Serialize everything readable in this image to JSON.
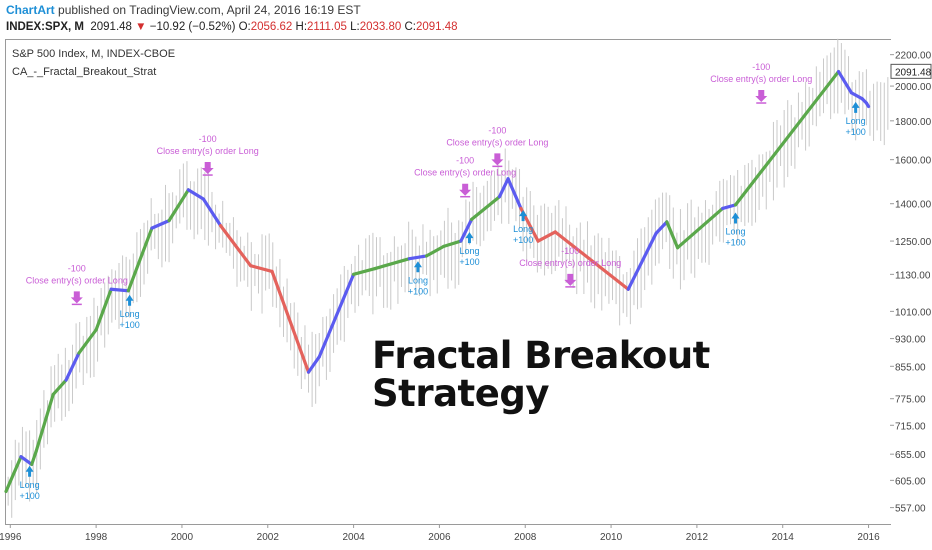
{
  "header": {
    "brand": "ChartArt",
    "published": "published on TradingView.com, April 24, 2016 16:19 EST",
    "symbol": "INDEX:SPX, M",
    "last": "2091.48",
    "change": "−10.92 (−0.52%)",
    "o_label": "O:",
    "o_value": "2056.62",
    "h_label": "H:",
    "h_value": "2111.05",
    "l_label": "L:",
    "l_value": "2033.80",
    "c_label": "C:",
    "c_value": "2091.48"
  },
  "legend": {
    "instrument": "S&P 500 Index, M, INDEX-CBOE",
    "strategy": "CA_-_Fractal_Breakout_Strat"
  },
  "overlay_text": {
    "line1": "Fractal Breakout",
    "line2": "Strategy"
  },
  "colors": {
    "up": "#5aa84b",
    "down": "#e4625c",
    "fractal": "#5b5bf0",
    "long_signal": "#1e8fd6",
    "close_signal": "#c95ed6",
    "price_bars": "#c9c9c9",
    "axis_text": "#444444",
    "price_tag": "#ffffff"
  },
  "chart_data": {
    "type": "line",
    "scale": "log",
    "ylim": [
      530,
      2300
    ],
    "y_ticks": [
      "557.00",
      "605.00",
      "655.00",
      "715.00",
      "775.00",
      "855.00",
      "930.00",
      "1010.00",
      "1130.00",
      "1250.00",
      "1400.00",
      "1600.00",
      "1800.00",
      "2000.00",
      "2200.00"
    ],
    "last_price_label": "2091.48",
    "x_ticks": [
      "1996",
      "1998",
      "2000",
      "2002",
      "2004",
      "2006",
      "2008",
      "2010",
      "2012",
      "2014",
      "2016"
    ],
    "xlim": [
      1995.9,
      2016.5
    ],
    "series": [
      {
        "points": [
          [
            1995.9,
            585,
            "up"
          ],
          [
            1996.25,
            650,
            "up"
          ],
          [
            1996.5,
            635,
            "fractal"
          ],
          [
            1996.6,
            660,
            "up"
          ],
          [
            1997.0,
            785,
            "up"
          ],
          [
            1997.3,
            820,
            "up"
          ],
          [
            1997.6,
            890,
            "fractal"
          ],
          [
            1998.0,
            955,
            "up"
          ],
          [
            1998.35,
            1080,
            "up"
          ],
          [
            1998.75,
            1075,
            "fractal"
          ],
          [
            1999.3,
            1300,
            "up"
          ],
          [
            1999.7,
            1330,
            "fractal"
          ],
          [
            2000.15,
            1460,
            "up"
          ],
          [
            2000.5,
            1420,
            "fractal"
          ],
          [
            2000.9,
            1310,
            "fractal"
          ],
          [
            2001.6,
            1160,
            "down"
          ],
          [
            2002.1,
            1140,
            "down"
          ],
          [
            2002.95,
            840,
            "down"
          ],
          [
            2003.2,
            880,
            "fractal"
          ],
          [
            2004.0,
            1130,
            "fractal"
          ],
          [
            2004.5,
            1150,
            "up"
          ],
          [
            2005.3,
            1185,
            "up"
          ],
          [
            2005.7,
            1195,
            "fractal"
          ],
          [
            2006.1,
            1230,
            "up"
          ],
          [
            2006.5,
            1250,
            "up"
          ],
          [
            2006.75,
            1335,
            "fractal"
          ],
          [
            2007.4,
            1430,
            "up"
          ],
          [
            2007.6,
            1510,
            "fractal"
          ],
          [
            2007.9,
            1380,
            "fractal"
          ],
          [
            2008.3,
            1250,
            "down"
          ],
          [
            2008.7,
            1285,
            "down"
          ],
          [
            2010.4,
            1080,
            "down"
          ],
          [
            2011.05,
            1280,
            "fractal"
          ],
          [
            2011.3,
            1325,
            "fractal"
          ],
          [
            2011.55,
            1225,
            "up"
          ],
          [
            2012.6,
            1380,
            "up"
          ],
          [
            2012.9,
            1395,
            "fractal"
          ],
          [
            2015.3,
            2090,
            "up"
          ],
          [
            2015.6,
            1960,
            "fractal"
          ],
          [
            2015.85,
            1925,
            "fractal"
          ],
          [
            2015.95,
            1900,
            "fractal"
          ],
          [
            2016.0,
            1880,
            "fractal"
          ]
        ]
      }
    ],
    "annotations": [
      {
        "kind": "long",
        "x": 1996.45,
        "y": 640,
        "text1": "Long",
        "text2": "+100"
      },
      {
        "kind": "long",
        "x": 1998.78,
        "y": 1075,
        "text1": "Long",
        "text2": "+100"
      },
      {
        "kind": "long",
        "x": 2005.5,
        "y": 1190,
        "text1": "Long",
        "text2": "+100"
      },
      {
        "kind": "long",
        "x": 2006.7,
        "y": 1300,
        "text1": "Long",
        "text2": "+100"
      },
      {
        "kind": "long",
        "x": 2007.95,
        "y": 1390,
        "text1": "Long",
        "text2": "+100"
      },
      {
        "kind": "long",
        "x": 2012.9,
        "y": 1380,
        "text1": "Long",
        "text2": "+100"
      },
      {
        "kind": "long",
        "x": 2015.7,
        "y": 1930,
        "text1": "Long",
        "text2": "+100"
      },
      {
        "kind": "close",
        "x": 1997.55,
        "y": 1010,
        "text1": "-100",
        "text2": "Close entry(s) order Long"
      },
      {
        "kind": "close",
        "x": 2000.6,
        "y": 1495,
        "text1": "-100",
        "text2": "Close entry(s) order Long"
      },
      {
        "kind": "close",
        "x": 2006.6,
        "y": 1400,
        "text1": "-100",
        "text2": "Close entry(s) order Long"
      },
      {
        "kind": "close",
        "x": 2007.35,
        "y": 1535,
        "text1": "-100",
        "text2": "Close entry(s) order Long"
      },
      {
        "kind": "close",
        "x": 2009.05,
        "y": 1065,
        "text1": "-100",
        "text2": "Close entry(s) order Long"
      },
      {
        "kind": "close",
        "x": 2013.5,
        "y": 1860,
        "text1": "-100",
        "text2": "Close entry(s) order Long"
      }
    ]
  }
}
